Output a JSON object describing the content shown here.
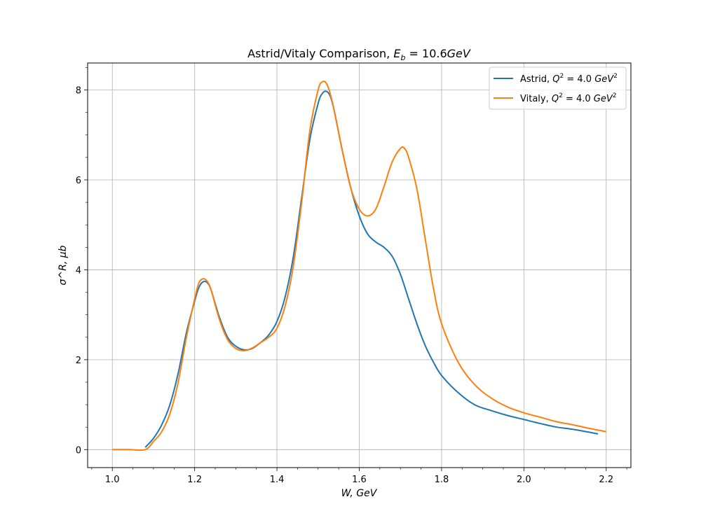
{
  "chart_data": {
    "type": "line",
    "title": "Astrid/Vitaly Comparison, E_b = 10.6GeV",
    "title_parts": {
      "prefix": "Astrid/Vitaly Comparison, ",
      "sym": "E",
      "sub": "b",
      "suffix": " = 10.6",
      "unit": "GeV"
    },
    "xlabel": "W, GeV",
    "ylabel": "σ^R, μb",
    "xlim": [
      0.94,
      2.26
    ],
    "ylim": [
      -0.4,
      8.6
    ],
    "xticks": [
      1.0,
      1.2,
      1.4,
      1.6,
      1.8,
      2.0,
      2.2
    ],
    "xtick_labels": [
      "1.0",
      "1.2",
      "1.4",
      "1.6",
      "1.8",
      "2.0",
      "2.2"
    ],
    "yticks": [
      0,
      2,
      4,
      6,
      8
    ],
    "ytick_labels": [
      "0",
      "2",
      "4",
      "6",
      "8"
    ],
    "grid": true,
    "legend_position": "top-right",
    "series": [
      {
        "name": "Astrid, Q^2 = 4.0 GeV^2",
        "legend": {
          "prefix": "Astrid, ",
          "val": " = 4.0 ",
          "unit": "GeV"
        },
        "color": "#1f77b4",
        "x": [
          1.08,
          1.1,
          1.12,
          1.14,
          1.16,
          1.18,
          1.2,
          1.21,
          1.22,
          1.23,
          1.24,
          1.26,
          1.28,
          1.3,
          1.32,
          1.34,
          1.36,
          1.38,
          1.4,
          1.42,
          1.44,
          1.46,
          1.48,
          1.5,
          1.51,
          1.52,
          1.53,
          1.54,
          1.56,
          1.58,
          1.6,
          1.62,
          1.64,
          1.66,
          1.68,
          1.7,
          1.72,
          1.74,
          1.76,
          1.78,
          1.8,
          1.84,
          1.88,
          1.92,
          1.96,
          2.0,
          2.04,
          2.08,
          2.12,
          2.18
        ],
        "y": [
          0.05,
          0.25,
          0.55,
          1.0,
          1.7,
          2.6,
          3.3,
          3.6,
          3.73,
          3.72,
          3.55,
          2.95,
          2.5,
          2.3,
          2.22,
          2.25,
          2.38,
          2.55,
          2.85,
          3.4,
          4.3,
          5.6,
          6.9,
          7.7,
          7.92,
          7.97,
          7.85,
          7.5,
          6.6,
          5.8,
          5.2,
          4.8,
          4.62,
          4.5,
          4.3,
          3.9,
          3.35,
          2.8,
          2.32,
          1.95,
          1.65,
          1.27,
          1.0,
          0.87,
          0.76,
          0.67,
          0.58,
          0.5,
          0.45,
          0.35
        ]
      },
      {
        "name": "Vitaly, Q^2 = 4.0 GeV^2",
        "legend": {
          "prefix": "Vitaly, ",
          "val": " = 4.0 ",
          "unit": "GeV"
        },
        "color": "#ff7f0e",
        "x": [
          1.0,
          1.04,
          1.08,
          1.1,
          1.12,
          1.14,
          1.16,
          1.18,
          1.2,
          1.21,
          1.22,
          1.23,
          1.24,
          1.26,
          1.28,
          1.3,
          1.32,
          1.34,
          1.36,
          1.38,
          1.4,
          1.42,
          1.44,
          1.46,
          1.48,
          1.5,
          1.51,
          1.52,
          1.53,
          1.54,
          1.56,
          1.58,
          1.6,
          1.62,
          1.64,
          1.66,
          1.68,
          1.7,
          1.71,
          1.72,
          1.74,
          1.76,
          1.78,
          1.8,
          1.84,
          1.88,
          1.92,
          1.96,
          2.0,
          2.04,
          2.08,
          2.12,
          2.16,
          2.2
        ],
        "y": [
          0.0,
          0.0,
          0.0,
          0.18,
          0.4,
          0.8,
          1.5,
          2.5,
          3.35,
          3.7,
          3.8,
          3.75,
          3.55,
          2.9,
          2.45,
          2.25,
          2.2,
          2.26,
          2.38,
          2.5,
          2.7,
          3.2,
          4.1,
          5.5,
          7.1,
          8.0,
          8.18,
          8.15,
          7.9,
          7.5,
          6.6,
          5.8,
          5.35,
          5.2,
          5.35,
          5.85,
          6.4,
          6.7,
          6.7,
          6.5,
          5.8,
          4.7,
          3.6,
          2.8,
          1.95,
          1.45,
          1.15,
          0.95,
          0.82,
          0.72,
          0.62,
          0.55,
          0.47,
          0.4
        ]
      }
    ]
  }
}
